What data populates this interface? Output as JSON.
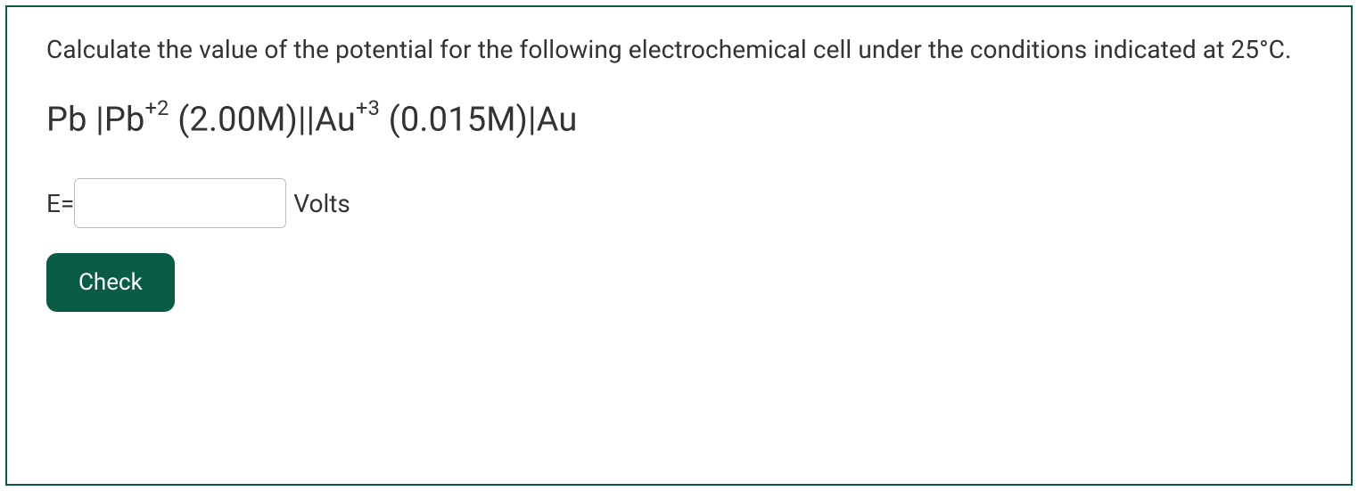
{
  "card": {
    "border_color": "#0a5c46",
    "background_color": "#ffffff"
  },
  "prompt": {
    "text": "Calculate the value of the potential for the following electrochemical cell under the conditions indicated at 25°C.",
    "fontsize": 28,
    "color": "#333333"
  },
  "cell_notation": {
    "anode_metal": "Pb",
    "anode_ion": "Pb",
    "anode_charge": "+2",
    "anode_conc": "(2.00M)",
    "cathode_ion": "Au",
    "cathode_charge": "+3",
    "cathode_conc": "(0.015M)",
    "cathode_metal": "Au",
    "fontsize": 38,
    "color": "#333333"
  },
  "answer": {
    "label": "E=",
    "value": "",
    "unit": "Volts",
    "input_border_color": "#bbbbbb",
    "fontsize": 28
  },
  "button": {
    "label": "Check",
    "background_color": "#0a5c46",
    "text_color": "#ffffff",
    "fontsize": 26,
    "border_radius": 12
  }
}
